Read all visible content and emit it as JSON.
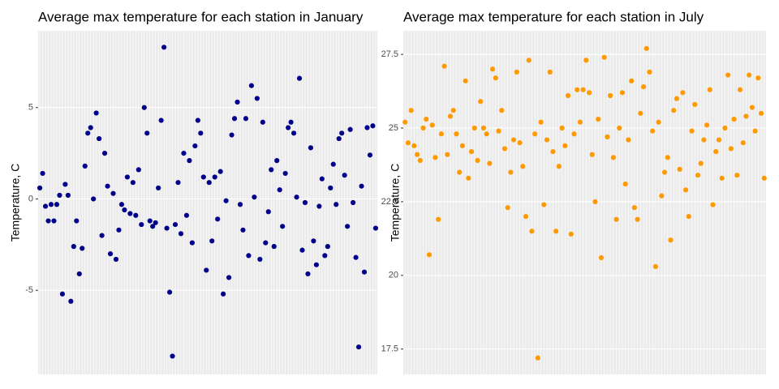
{
  "chart_data": [
    {
      "type": "scatter",
      "title": "Average max temperature for each station in January",
      "ylabel": "Temperature, C",
      "color": "#00008b",
      "grid": true,
      "ylim": [
        -9.6,
        9.2
      ],
      "yticks": [
        -5,
        0,
        5
      ],
      "categories": [
        null,
        null,
        null,
        null,
        null,
        null,
        null,
        null,
        null,
        null,
        null,
        null,
        null,
        null,
        null,
        null,
        null,
        null,
        null,
        null,
        null,
        null,
        null,
        null,
        null,
        null,
        null,
        null,
        null,
        null,
        null,
        null,
        null,
        null,
        null,
        null,
        null,
        null,
        null,
        null,
        null,
        null,
        null,
        null,
        null,
        null,
        null,
        null,
        null,
        null,
        null,
        null,
        null,
        null,
        null,
        null,
        null,
        null,
        null,
        null,
        null,
        null,
        null,
        null,
        null,
        null,
        null,
        null,
        null,
        null,
        null,
        null,
        null,
        null,
        null,
        null,
        null,
        null,
        null,
        null,
        null,
        null,
        null,
        null,
        null,
        null,
        null,
        null,
        null,
        null,
        null,
        null,
        null,
        null,
        null,
        null,
        null,
        null,
        null,
        null,
        null,
        null,
        null,
        null,
        null,
        null,
        null,
        null,
        null,
        null,
        null,
        null,
        null,
        null,
        null,
        null,
        null,
        null,
        null,
        null
      ],
      "values": [
        0.6,
        1.4,
        -0.4,
        -1.2,
        -0.3,
        -1.2,
        -0.3,
        0.2,
        -5.2,
        0.8,
        0.2,
        -5.6,
        -2.6,
        -1.2,
        -4.1,
        -2.7,
        1.8,
        3.6,
        3.9,
        0,
        4.7,
        3.3,
        -2,
        2.5,
        0.7,
        -3,
        0.3,
        -3.3,
        -1.7,
        -0.3,
        -0.6,
        1.2,
        -0.8,
        0.9,
        -0.9,
        1.6,
        -1.4,
        5,
        3.6,
        -1.2,
        -1.5,
        -1.3,
        0.6,
        4.3,
        8.3,
        -1.6,
        -5.1,
        -8.6,
        -1.4,
        0.9,
        -1.9,
        2.5,
        -0.9,
        2.1,
        -2.4,
        2.9,
        4.3,
        3.6,
        1.2,
        -3.9,
        0.9,
        -2.3,
        1.2,
        -1.1,
        1.5,
        -5.2,
        -0.1,
        -4.3,
        3.5,
        4.4,
        5.3,
        -0.3,
        -1.7,
        4.4,
        -3.1,
        6.2,
        0.1,
        5.5,
        -3.3,
        4.2,
        -2.4,
        -0.7,
        1.6,
        -2.6,
        2.1,
        0.5,
        -1.5,
        1.4,
        3.9,
        4.2,
        3.6,
        0.1,
        6.6,
        -2.8,
        -0.2,
        -4.1,
        2.8,
        -2.3,
        -3.6,
        -0.4,
        1.1,
        -3.1,
        -2.6,
        0.6,
        1.9,
        -0.3,
        3.3,
        3.6,
        1.3,
        -1.5,
        3.8,
        -0.2,
        -3.2,
        -8.1,
        0.7,
        -4,
        3.9,
        2.4,
        4,
        -1.6
      ]
    },
    {
      "type": "scatter",
      "title": "Average max temperature for each station in July",
      "ylabel": "Temperature, C",
      "color": "#ff9900",
      "grid": true,
      "ylim": [
        16.64,
        28.3
      ],
      "yticks": [
        17.5,
        20.0,
        22.5,
        25.0,
        27.5
      ],
      "categories": [
        null,
        null,
        null,
        null,
        null,
        null,
        null,
        null,
        null,
        null,
        null,
        null,
        null,
        null,
        null,
        null,
        null,
        null,
        null,
        null,
        null,
        null,
        null,
        null,
        null,
        null,
        null,
        null,
        null,
        null,
        null,
        null,
        null,
        null,
        null,
        null,
        null,
        null,
        null,
        null,
        null,
        null,
        null,
        null,
        null,
        null,
        null,
        null,
        null,
        null,
        null,
        null,
        null,
        null,
        null,
        null,
        null,
        null,
        null,
        null,
        null,
        null,
        null,
        null,
        null,
        null,
        null,
        null,
        null,
        null,
        null,
        null,
        null,
        null,
        null,
        null,
        null,
        null,
        null,
        null,
        null,
        null,
        null,
        null,
        null,
        null,
        null,
        null,
        null,
        null,
        null,
        null,
        null,
        null,
        null,
        null,
        null,
        null,
        null,
        null,
        null,
        null,
        null,
        null,
        null,
        null,
        null,
        null,
        null,
        null,
        null,
        null,
        null,
        null,
        null,
        null,
        null,
        null,
        null,
        null
      ],
      "values": [
        25.2,
        24.5,
        25.6,
        24.4,
        24.1,
        23.9,
        25,
        25.3,
        20.7,
        25.1,
        24,
        21.9,
        24.8,
        27.1,
        24.1,
        25.4,
        25.6,
        24.8,
        23.5,
        24.4,
        26.6,
        23.3,
        24.2,
        25,
        23.9,
        25.9,
        25,
        24.8,
        23.8,
        27,
        26.7,
        24.9,
        25.6,
        24.3,
        22.3,
        23.5,
        24.6,
        26.9,
        24.5,
        23.7,
        22,
        27.3,
        21.5,
        24.8,
        17.2,
        25.2,
        22.4,
        24.6,
        26.9,
        24.2,
        21.5,
        23.7,
        25,
        24.4,
        26.1,
        21.4,
        24.8,
        26.3,
        25.2,
        26.3,
        27.3,
        26.2,
        24.1,
        22.5,
        25.3,
        20.6,
        27.4,
        24.7,
        26.1,
        24,
        21.9,
        25,
        26.2,
        23.1,
        24.6,
        26.6,
        22.3,
        21.9,
        25.5,
        26.4,
        27.7,
        26.9,
        24.9,
        20.3,
        25.2,
        22.7,
        23.5,
        24,
        21.2,
        25.6,
        26,
        23.6,
        26.2,
        22.9,
        22,
        24.9,
        25.8,
        23.4,
        23.8,
        24.6,
        25.1,
        26.3,
        22.4,
        24.2,
        24.6,
        23.3,
        25,
        26.8,
        24.3,
        25.3,
        23.4,
        26.3,
        24.5,
        25.4,
        26.8,
        25.7,
        24.9,
        26.7,
        25.5,
        23.3
      ]
    }
  ]
}
